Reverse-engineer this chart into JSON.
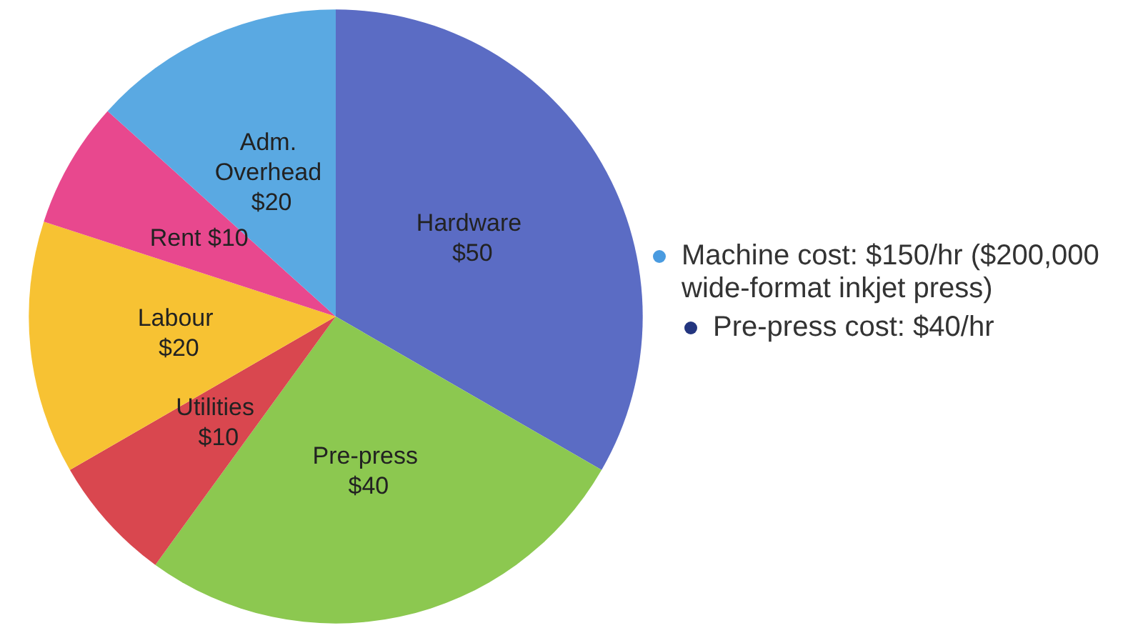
{
  "chart_data": {
    "type": "pie",
    "categories": [
      "Hardware",
      "Pre-press",
      "Utilities",
      "Labour",
      "Rent",
      "Adm. Overhead"
    ],
    "values": [
      50,
      40,
      10,
      20,
      10,
      20
    ],
    "value_labels": [
      "$50",
      "$40",
      "$10",
      "$20",
      "$10",
      "$20"
    ],
    "colors": [
      "#5b6cc4",
      "#8cc850",
      "#d9474f",
      "#f7c233",
      "#e8488e",
      "#5aa9e2"
    ],
    "annotations": [
      "Machine cost: $150/hr ($200,000 wide-format inkjet press)",
      "Pre-press cost: $40/hr"
    ]
  }
}
